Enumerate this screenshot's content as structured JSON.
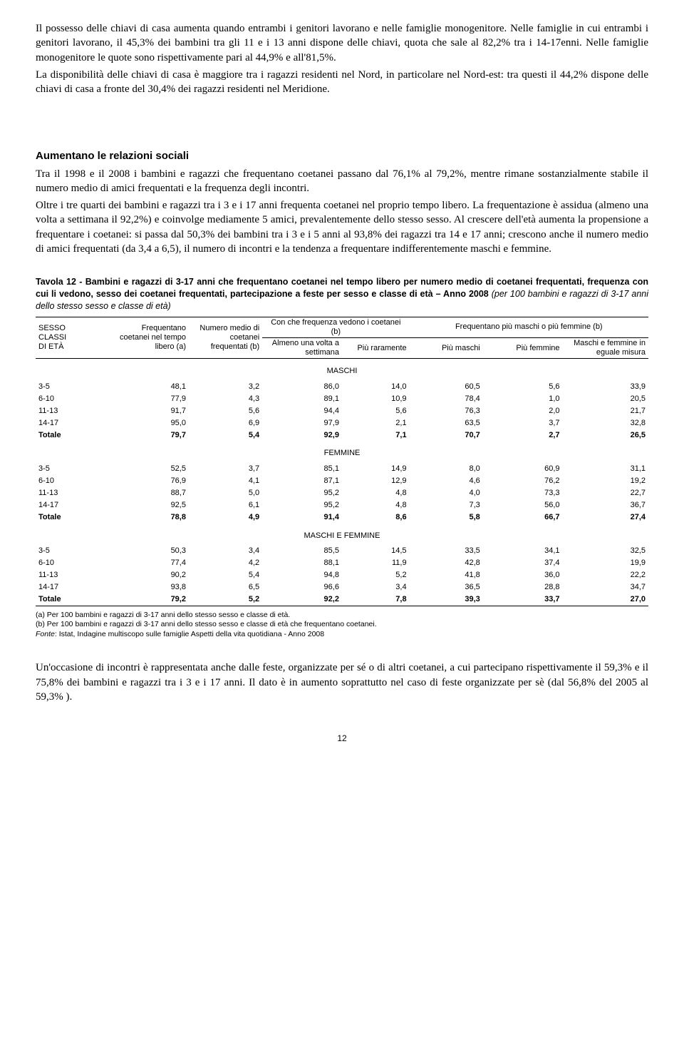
{
  "intro": {
    "p1": "Il possesso delle chiavi di casa aumenta quando entrambi i genitori lavorano e nelle famiglie monogenitore. Nelle famiglie in cui entrambi i genitori lavorano, il 45,3% dei bambini tra gli 11 e i 13 anni dispone delle chiavi, quota che sale al 82,2% tra i 14-17enni. Nelle famiglie monogenitore le quote sono rispettivamente pari al 44,9% e all'81,5%.",
    "p2": "La disponibilità delle chiavi di casa è maggiore tra i ragazzi residenti nel Nord, in particolare nel Nord-est: tra questi il 44,2% dispone delle chiavi di casa a fronte del 30,4% dei ragazzi residenti nel Meridione."
  },
  "section": {
    "heading": "Aumentano le relazioni sociali",
    "p1": "Tra il 1998 e il 2008 i bambini e ragazzi che frequentano coetanei passano dal 76,1% al 79,2%, mentre rimane sostanzialmente stabile il numero medio di amici frequentati e la frequenza degli incontri.",
    "p2": "Oltre i tre quarti dei bambini e ragazzi tra i 3 e i 17 anni frequenta coetanei nel proprio tempo libero. La frequentazione è assidua (almeno una volta a settimana il 92,2%) e coinvolge mediamente 5 amici, prevalentemente dello stesso sesso. Al crescere dell'età aumenta la propensione a frequentare i coetanei: si passa dal 50,3% dei bambini tra i 3 e i 5 anni al 93,8% dei ragazzi tra 14 e 17 anni; crescono anche il numero medio di amici frequentati (da 3,4 a 6,5), il numero di incontri e la tendenza a frequentare indifferentemente maschi e femmine."
  },
  "table": {
    "title_bold": "Tavola 12 - Bambini e ragazzi di 3-17 anni che frequentano coetanei nel tempo libero per numero medio di coetanei frequentati, frequenza con cui li vedono, sesso dei coetanei frequentati, partecipazione a feste per sesso e classe di età – Anno 2008 ",
    "title_italic": "(per 100 bambini e ragazzi di 3-17 anni dello stesso sesso e classe di età)",
    "header": {
      "rowlabel": "SESSO\nCLASSI\nDI ETÀ",
      "c1": "Frequentano coetanei nel tempo libero (a)",
      "c2": "Numero medio di coetanei frequentati (b)",
      "g1": "Con che frequenza vedono i coetanei (b)",
      "g1a": "Almeno una volta a settimana",
      "g1b": "Più raramente",
      "g2": "Frequentano più maschi o più femmine (b)",
      "g2a": "Più maschi",
      "g2b": "Più femmine",
      "g2c": "Maschi e femmine in eguale misura"
    },
    "groups": [
      {
        "label": "MASCHI",
        "rows": [
          {
            "k": "3-5",
            "v": [
              "48,1",
              "3,2",
              "86,0",
              "14,0",
              "60,5",
              "5,6",
              "33,9"
            ]
          },
          {
            "k": "6-10",
            "v": [
              "77,9",
              "4,3",
              "89,1",
              "10,9",
              "78,4",
              "1,0",
              "20,5"
            ]
          },
          {
            "k": "11-13",
            "v": [
              "91,7",
              "5,6",
              "94,4",
              "5,6",
              "76,3",
              "2,0",
              "21,7"
            ]
          },
          {
            "k": "14-17",
            "v": [
              "95,0",
              "6,9",
              "97,9",
              "2,1",
              "63,5",
              "3,7",
              "32,8"
            ]
          },
          {
            "k": "Totale",
            "v": [
              "79,7",
              "5,4",
              "92,9",
              "7,1",
              "70,7",
              "2,7",
              "26,5"
            ],
            "bold": true
          }
        ]
      },
      {
        "label": "FEMMINE",
        "rows": [
          {
            "k": "3-5",
            "v": [
              "52,5",
              "3,7",
              "85,1",
              "14,9",
              "8,0",
              "60,9",
              "31,1"
            ]
          },
          {
            "k": "6-10",
            "v": [
              "76,9",
              "4,1",
              "87,1",
              "12,9",
              "4,6",
              "76,2",
              "19,2"
            ]
          },
          {
            "k": "11-13",
            "v": [
              "88,7",
              "5,0",
              "95,2",
              "4,8",
              "4,0",
              "73,3",
              "22,7"
            ]
          },
          {
            "k": "14-17",
            "v": [
              "92,5",
              "6,1",
              "95,2",
              "4,8",
              "7,3",
              "56,0",
              "36,7"
            ]
          },
          {
            "k": "Totale",
            "v": [
              "78,8",
              "4,9",
              "91,4",
              "8,6",
              "5,8",
              "66,7",
              "27,4"
            ],
            "bold": true
          }
        ]
      },
      {
        "label": "MASCHI E FEMMINE",
        "rows": [
          {
            "k": "3-5",
            "v": [
              "50,3",
              "3,4",
              "85,5",
              "14,5",
              "33,5",
              "34,1",
              "32,5"
            ]
          },
          {
            "k": "6-10",
            "v": [
              "77,4",
              "4,2",
              "88,1",
              "11,9",
              "42,8",
              "37,4",
              "19,9"
            ]
          },
          {
            "k": "11-13",
            "v": [
              "90,2",
              "5,4",
              "94,8",
              "5,2",
              "41,8",
              "36,0",
              "22,2"
            ]
          },
          {
            "k": "14-17",
            "v": [
              "93,8",
              "6,5",
              "96,6",
              "3,4",
              "36,5",
              "28,8",
              "34,7"
            ]
          },
          {
            "k": "Totale",
            "v": [
              "79,2",
              "5,2",
              "92,2",
              "7,8",
              "39,3",
              "33,7",
              "27,0"
            ],
            "bold": true
          }
        ]
      }
    ],
    "footnotes": {
      "a": "(a) Per 100 bambini e ragazzi di 3-17 anni dello stesso sesso e classe di età.",
      "b": "(b) Per 100 bambini e ragazzi di 3-17 anni dello stesso sesso e classe di età che frequentano coetanei.",
      "src_label": "Fonte",
      "src_text": ": Istat, Indagine multiscopo sulle famiglie Aspetti della vita quotidiana - Anno 2008"
    }
  },
  "closing": {
    "p1": "Un'occasione di incontri è rappresentata anche dalle feste, organizzate per sé o di altri coetanei, a cui partecipano rispettivamente il 59,3% e il 75,8% dei bambini e ragazzi tra i 3 e i 17 anni. Il dato è in aumento soprattutto nel caso di feste organizzate per sè (dal 56,8% del 2005 al 59,3% )."
  },
  "pagenum": "12"
}
